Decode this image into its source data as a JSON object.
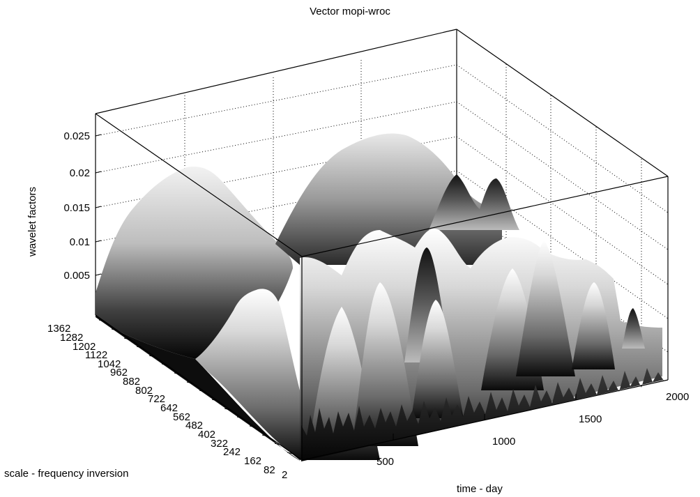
{
  "chart_data": {
    "type": "surface3d",
    "title": "Vector  mopi-wroc",
    "xlabel": "time - day",
    "ylabel": "scale -  frequency inversion",
    "zlabel": "wavelet factors",
    "x_ticks": [
      "500",
      "1000",
      "1500",
      "2000"
    ],
    "y_ticks": [
      "2",
      "82",
      "162",
      "242",
      "322",
      "402",
      "482",
      "562",
      "642",
      "722",
      "802",
      "882",
      "962",
      "1042",
      "1122",
      "1202",
      "1282",
      "1362"
    ],
    "z_ticks": [
      "0.005",
      "0.01",
      "0.015",
      "0.02",
      "0.025"
    ],
    "xlim": [
      0,
      2000
    ],
    "ylim": [
      2,
      1400
    ],
    "zlim": [
      0,
      0.028
    ],
    "grid": true,
    "colormap": "gray",
    "ridges": [
      {
        "x": 700,
        "y": 1300,
        "z": 0.021
      },
      {
        "x": 1000,
        "y": 1050,
        "z": 0.023
      },
      {
        "x": 1400,
        "y": 700,
        "z": 0.0185
      },
      {
        "x": 1600,
        "y": 600,
        "z": 0.019
      },
      {
        "x": 1200,
        "y": 480,
        "z": 0.0135
      },
      {
        "x": 900,
        "y": 300,
        "z": 0.0118
      },
      {
        "x": 1400,
        "y": 350,
        "z": 0.011
      }
    ]
  }
}
